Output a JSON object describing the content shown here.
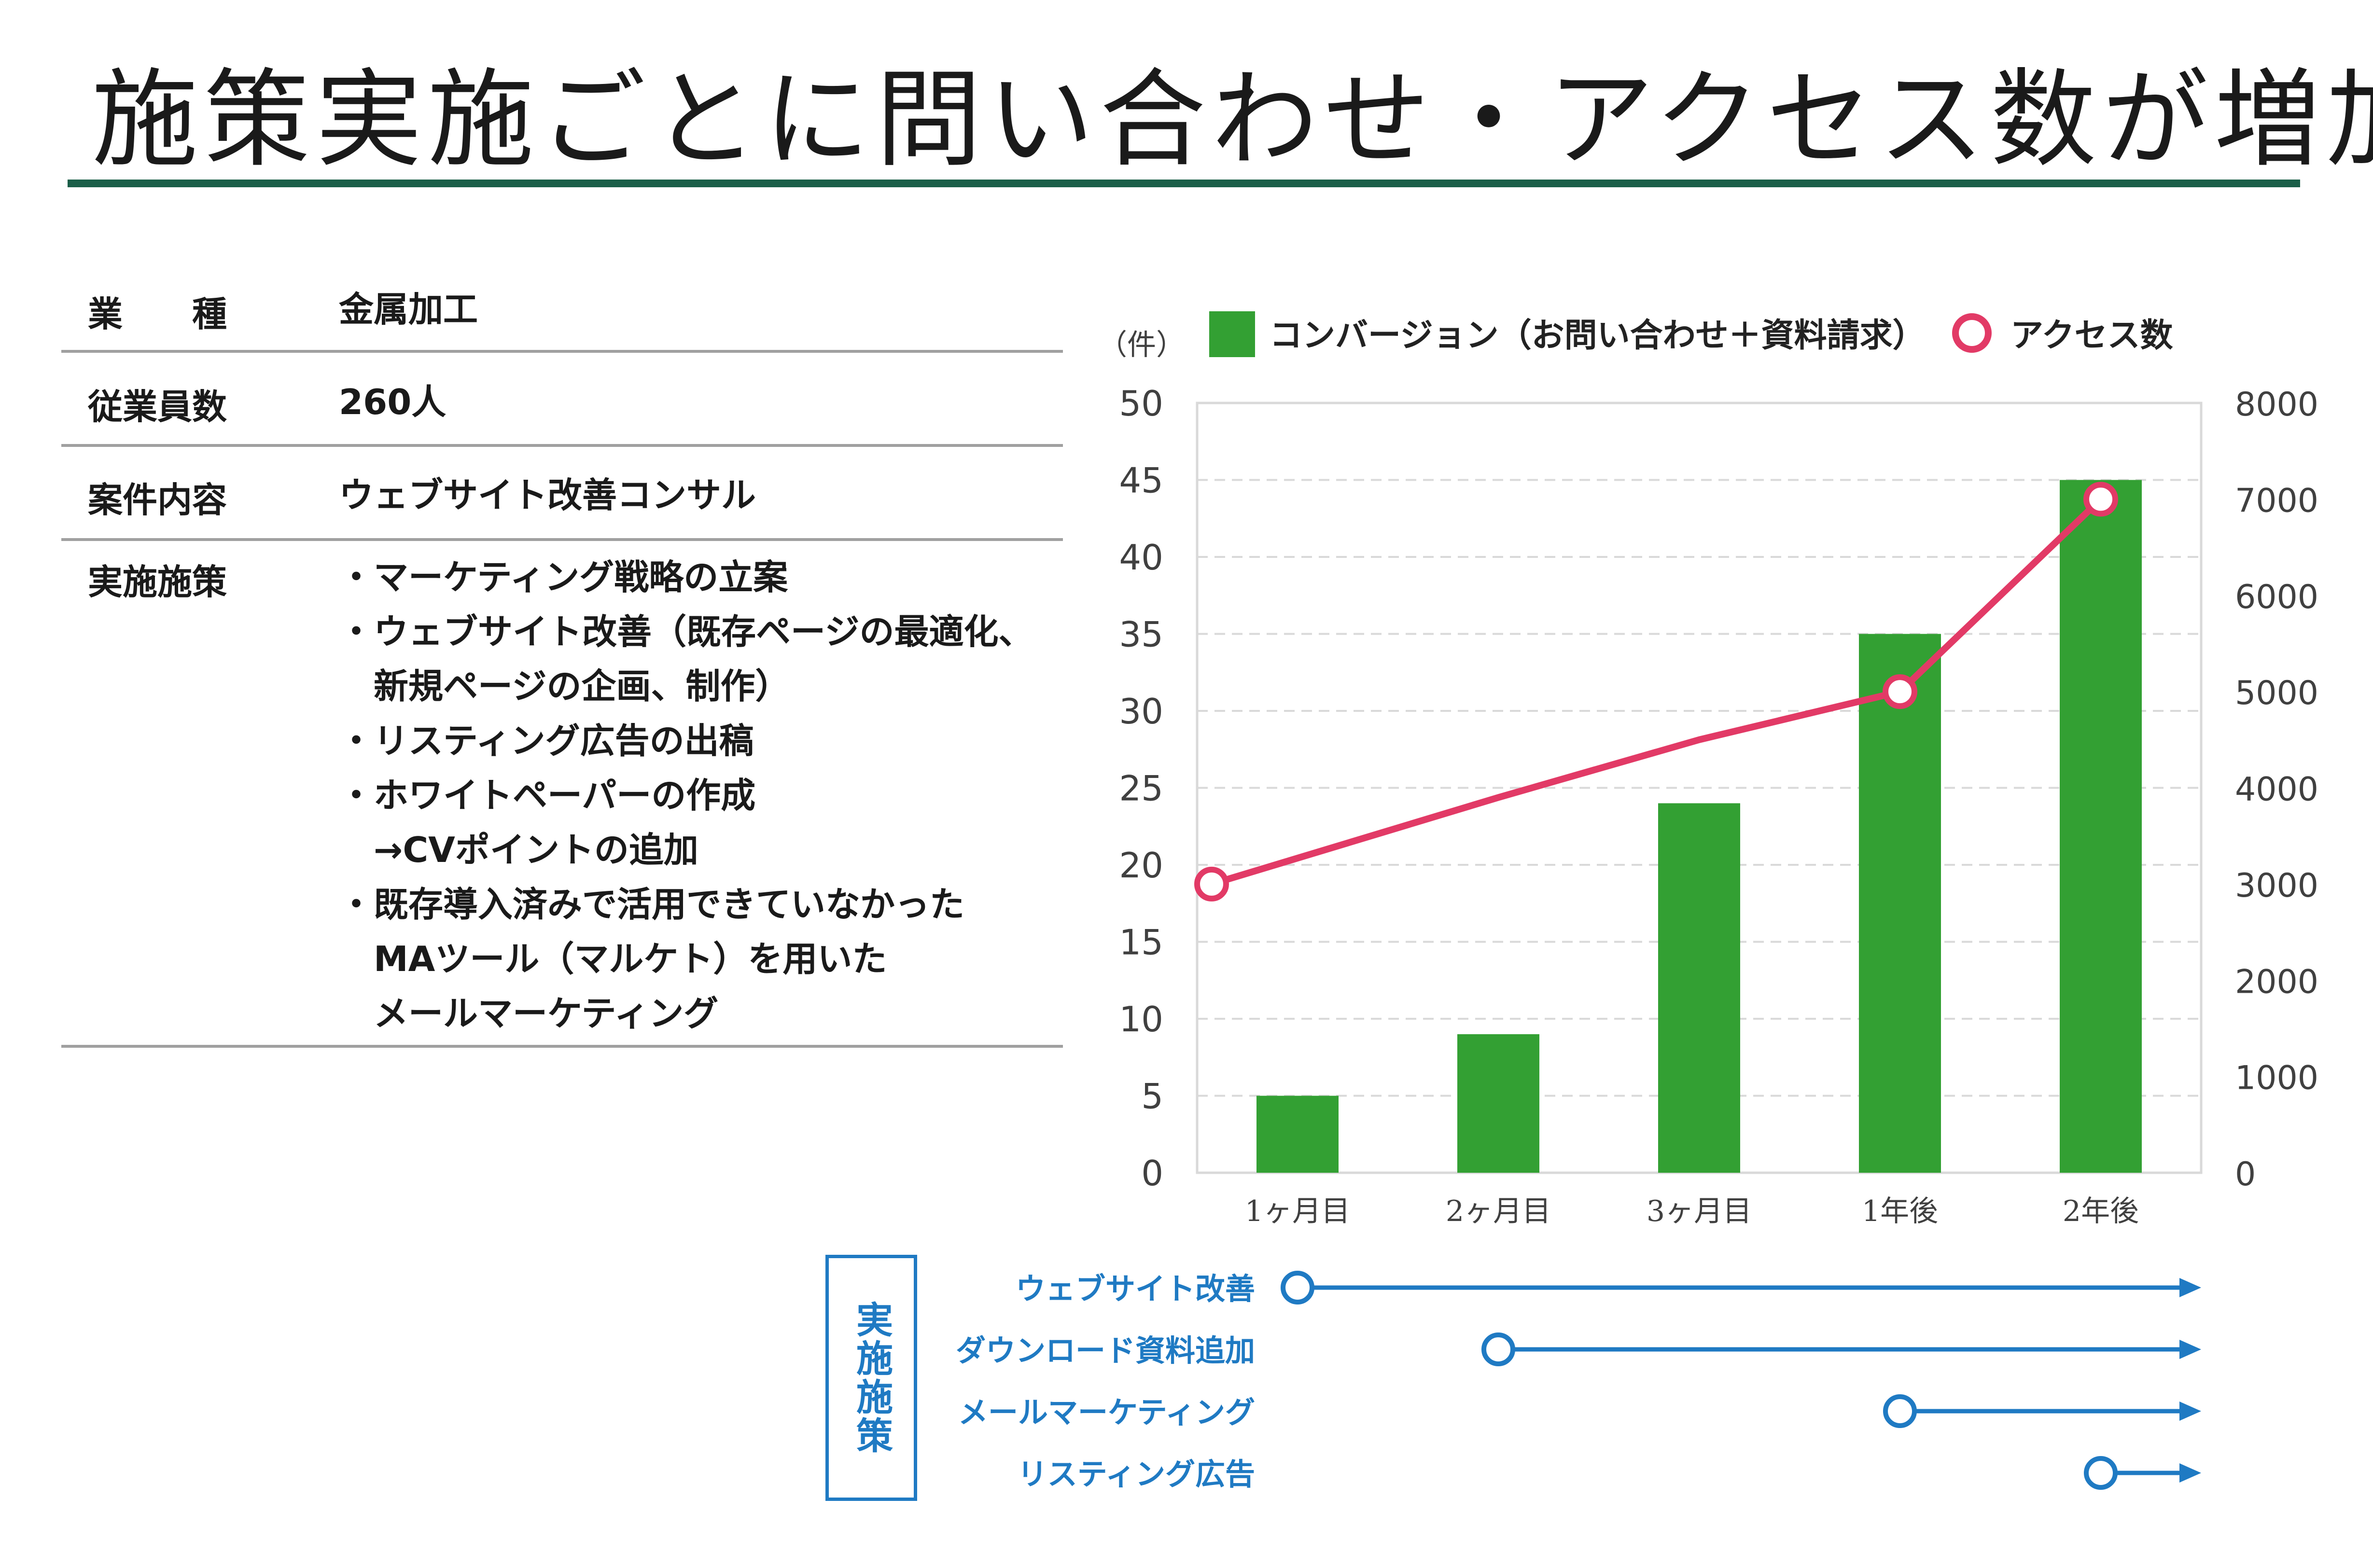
{
  "title": "施策実施ごとに問い合わせ・アクセス数が増加",
  "colors": {
    "title_rule": "#1a5e48",
    "bar": "#33a033",
    "line": "#e23a66",
    "measure": "#1f7ac3",
    "grid": "#d9d9d9",
    "axis_text": "#404040"
  },
  "info_table": [
    {
      "label": "業　　種",
      "lines": [
        "金属加工"
      ]
    },
    {
      "label": "従業員数",
      "lines": [
        "260人"
      ]
    },
    {
      "label": "案件内容",
      "lines": [
        "ウェブサイト改善コンサル"
      ]
    },
    {
      "label": "実施施策",
      "lines": [
        "・マーケティング戦略の立案",
        "・ウェブサイト改善（既存ページの最適化、",
        "　新規ページの企画、制作）",
        "・リスティング広告の出稿",
        "・ホワイトペーパーの作成",
        "　→CVポイントの追加",
        "・既存導入済みで活用できていなかった",
        "　MAツール（マルケト）を用いた",
        "　メールマーケティング"
      ]
    }
  ],
  "chart_data": {
    "type": "bar",
    "categories": [
      "1ヶ月目",
      "2ヶ月目",
      "3ヶ月目",
      "1年後",
      "2年後"
    ],
    "series": [
      {
        "name": "コンバージョン（お問い合わせ＋資料請求）",
        "type": "bar",
        "axis": "left",
        "values": [
          5,
          9,
          24,
          35,
          45
        ]
      },
      {
        "name": "アクセス数",
        "type": "line",
        "axis": "right",
        "values": [
          3000,
          3900,
          4500,
          5000,
          7000
        ]
      }
    ],
    "ylabel_left": "（件）",
    "ylim_left": [
      0,
      50
    ],
    "yticks_left": [
      0,
      5,
      10,
      15,
      20,
      25,
      30,
      35,
      40,
      45,
      50
    ],
    "ylim_right": [
      0,
      8000
    ],
    "yticks_right": [
      0,
      1000,
      2000,
      3000,
      4000,
      5000,
      6000,
      7000,
      8000
    ],
    "grid": "dashed horizontal",
    "legend": "top",
    "line_markers_shown": [
      0,
      3,
      4
    ]
  },
  "measures": {
    "box_label": "実施施策",
    "items": [
      {
        "label": "ウェブサイト改善",
        "start_position": 0.5
      },
      {
        "label": "ダウンロード資料追加",
        "start_position": 1.5
      },
      {
        "label": "メールマーケティング",
        "start_position": 3.5
      },
      {
        "label": "リスティング広告",
        "start_position": 4.5
      }
    ]
  }
}
